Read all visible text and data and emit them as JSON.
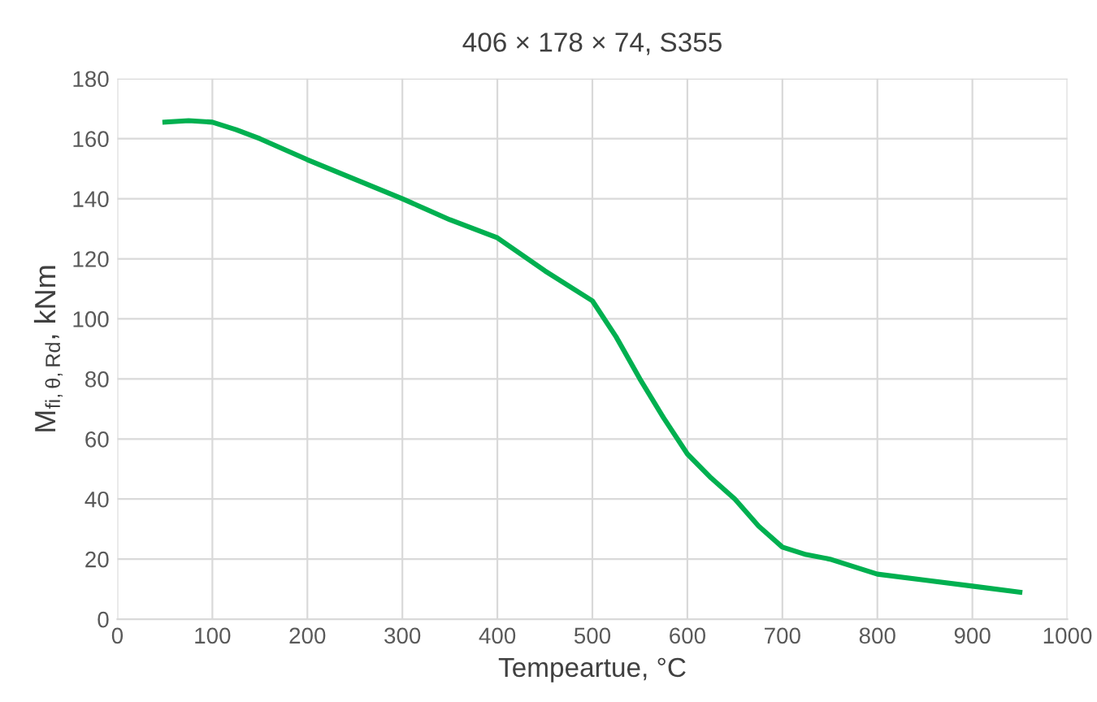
{
  "chart_data": {
    "type": "line",
    "title": "406 × 178 × 74, S355",
    "xlabel": "Tempeartue, °C",
    "ylabel": "M$_{fi,θ,Rd}$, kNm",
    "series": [
      {
        "color": "#00b050",
        "x": [
          50,
          75,
          100,
          125,
          150,
          200,
          250,
          300,
          350,
          400,
          450,
          500,
          525,
          550,
          575,
          600,
          625,
          650,
          675,
          700,
          725,
          750,
          800,
          850,
          900,
          950
        ],
        "values": [
          165.5,
          166,
          165.5,
          163,
          160,
          153,
          146.5,
          140,
          133,
          127,
          116,
          106,
          94,
          80,
          67,
          55,
          47,
          40,
          31,
          24,
          21.5,
          20,
          15,
          13,
          11,
          9
        ]
      }
    ],
    "xlim": [
      0,
      1000
    ],
    "xticks": [
      0,
      100,
      200,
      300,
      400,
      500,
      600,
      700,
      800,
      900,
      1000
    ],
    "ylim": [
      0,
      180
    ],
    "yticks": [
      0,
      20,
      40,
      60,
      80,
      100,
      120,
      140,
      160,
      180
    ],
    "grid": true,
    "marker": "none",
    "line_style": "solid"
  }
}
